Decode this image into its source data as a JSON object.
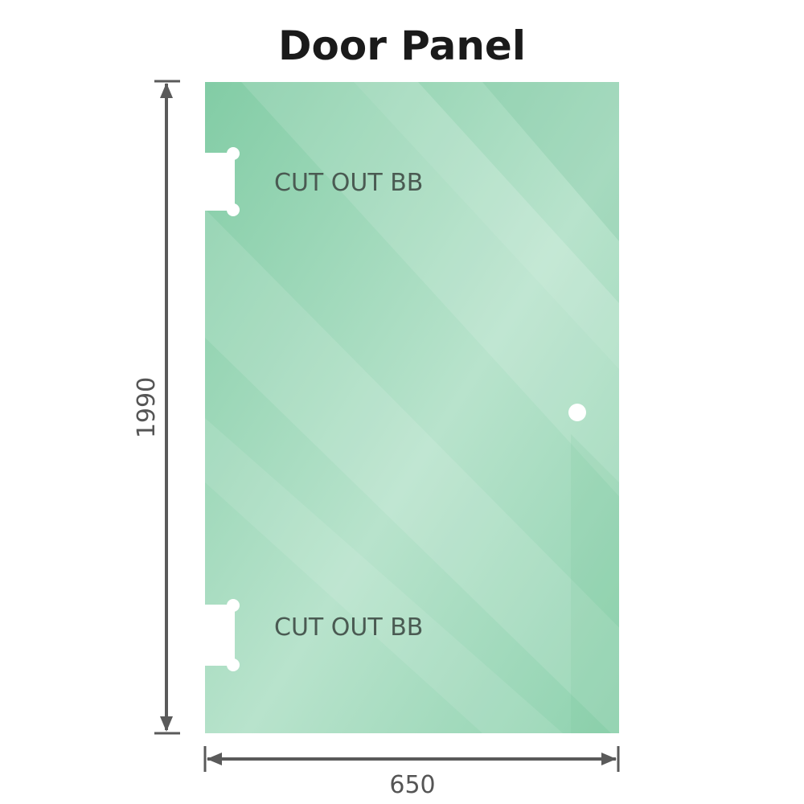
{
  "title": "Door Panel",
  "panel": {
    "cutout_top_label": "CUT OUT BB",
    "cutout_bottom_label": "CUT OUT BB",
    "glass_color": "#8dd0ad",
    "glass_light_color": "#bfe6d2"
  },
  "dimensions": {
    "height": "1990",
    "width": "650",
    "line_color": "#5a5a5a"
  }
}
